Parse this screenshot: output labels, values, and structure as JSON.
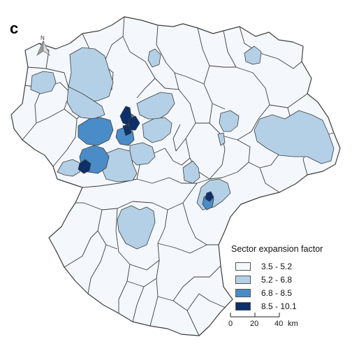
{
  "panel_label": "c",
  "north_arrow": {
    "letter": "N",
    "icon": "north-arrow-icon"
  },
  "legend": {
    "title": "Sector expansion factor",
    "classes": [
      {
        "label": "3.5 - 5.2",
        "color": "#f4f8fd"
      },
      {
        "label": "5.2 - 6.8",
        "color": "#b4d0e6"
      },
      {
        "label": "6.8 - 8.5",
        "color": "#4a8cc7"
      },
      {
        "label": "8.5 - 10.1",
        "color": "#0d2f6b"
      }
    ]
  },
  "scale_bar": {
    "ticks": [
      "0",
      "20",
      "40"
    ],
    "unit": "km"
  },
  "colors": {
    "border": "#3d3d3d",
    "background": "#ffffff"
  }
}
